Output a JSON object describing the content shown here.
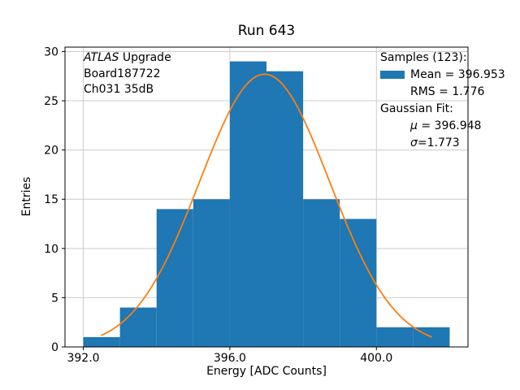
{
  "figure": {
    "background": "#ffffff"
  },
  "chart_data": {
    "type": "bar",
    "subtype": "histogram_with_gaussian_fit",
    "title": "Run 643",
    "xlabel": "Energy [ADC Counts]",
    "ylabel": "Entries",
    "xlim": [
      391.5,
      402.5
    ],
    "ylim": [
      0,
      30.45
    ],
    "xticks": [
      392.0,
      396.0,
      400.0
    ],
    "xtick_labels": [
      "392.0",
      "396.0",
      "400.0"
    ],
    "yticks": [
      0,
      5,
      10,
      15,
      20,
      25,
      30
    ],
    "ytick_labels": [
      "0",
      "5",
      "10",
      "15",
      "20",
      "25",
      "30"
    ],
    "grid": true,
    "grid_color": "#cccccc",
    "axes_color": "#000000",
    "histogram": {
      "label": "Samples",
      "n_entries": 123,
      "bin_edges": [
        392,
        393,
        394,
        395,
        396,
        397,
        398,
        399,
        400,
        401,
        402
      ],
      "counts": [
        1,
        4,
        14,
        15,
        29,
        28,
        15,
        13,
        2,
        2
      ],
      "color": "#1f77b4",
      "mean": 396.953,
      "rms": 1.776
    },
    "gaussian_fit": {
      "label": "Gaussian Fit",
      "mu": 396.948,
      "sigma": 1.773,
      "amplitude": 27.7,
      "x_range": [
        392.5,
        401.5
      ],
      "color": "#ff7f0e",
      "line_width": 1.8
    }
  },
  "annotation": {
    "line1_italic": "ATLAS",
    "line1_rest": " Upgrade",
    "line2": "Board187722",
    "line3": "Ch031 35dB"
  },
  "legend": {
    "samples_header": "Samples (123):",
    "mean_label": "Mean = 396.953",
    "rms_label": "RMS = 1.776",
    "fit_header": "Gaussian Fit:",
    "mu_symbol": "μ",
    "mu_rest": " = 396.948",
    "sigma_symbol": "σ",
    "sigma_rest": "=1.773"
  }
}
